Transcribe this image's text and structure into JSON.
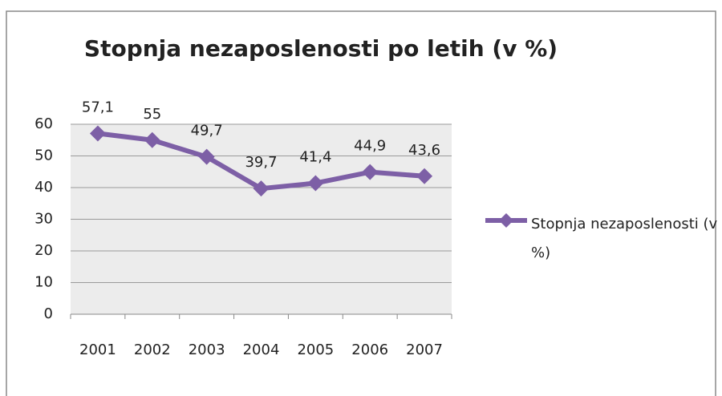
{
  "chart_data": {
    "type": "line",
    "title": "Stopnja nezaposlenosti po letih (v %)",
    "categories": [
      "2001",
      "2002",
      "2003",
      "2004",
      "2005",
      "2006",
      "2007"
    ],
    "series": [
      {
        "name": "Stopnja nezaposlenosti (v %)",
        "color": "#7d5fa6",
        "values": [
          57.1,
          55,
          49.7,
          39.7,
          41.4,
          44.9,
          43.6
        ],
        "value_labels": [
          "57,1",
          "55",
          "49,7",
          "39,7",
          "41,4",
          "44,9",
          "43,6"
        ]
      }
    ],
    "ylim": [
      0,
      60
    ],
    "yticks": [
      0,
      10,
      20,
      30,
      40,
      50,
      60
    ],
    "grid": true,
    "legend": "right"
  }
}
